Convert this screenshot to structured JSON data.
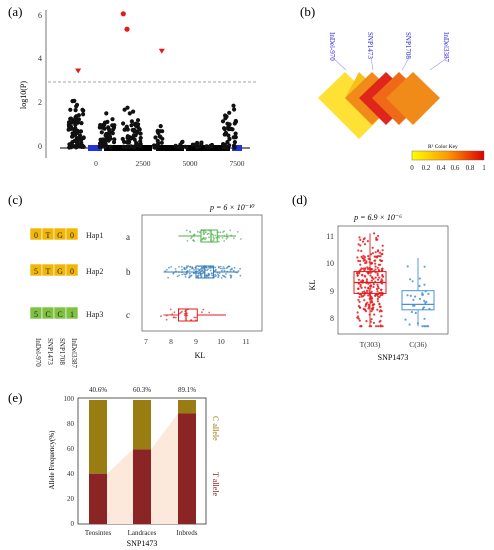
{
  "panels": {
    "a": {
      "label": "(a)",
      "ylabel": "log10(P)",
      "yticks": [
        "0",
        "2",
        "4",
        "6"
      ],
      "xticks": [
        "0",
        "2500",
        "5000",
        "7500"
      ],
      "threshold": 3,
      "red_points": [
        {
          "x": 1450,
          "y": 6.1
        },
        {
          "x": 1650,
          "y": 5.4
        },
        {
          "x": 3500,
          "y": 4.4
        },
        {
          "x": -950,
          "y": 3.5
        }
      ]
    },
    "b": {
      "label": "(b)",
      "snps": [
        "InDel-970",
        "SNP1473",
        "SNP1708",
        "InDel3387"
      ],
      "legend_title": "R² Color Key",
      "legend_ticks": [
        "0",
        "0.2",
        "0.4",
        "0.6",
        "0.8",
        "1"
      ]
    },
    "c": {
      "label": "(c)",
      "p_value": "p = 6 × 10⁻¹⁰",
      "haplotypes": [
        {
          "name": "Hap1",
          "letter": "a",
          "alleles": [
            "0",
            "T",
            "G",
            "0"
          ],
          "color": "#f2b705"
        },
        {
          "name": "Hap2",
          "letter": "b",
          "alleles": [
            "5",
            "T",
            "G",
            "0"
          ],
          "color": "#f2b705"
        },
        {
          "name": "Hap3",
          "letter": "c",
          "alleles": [
            "5",
            "C",
            "C",
            "1"
          ],
          "color": "#7fc241"
        }
      ],
      "markers": [
        "InDel-970",
        "SNP1473",
        "SNP1708",
        "InDel3387"
      ],
      "xlabel": "KL",
      "xticks": [
        "7",
        "8",
        "9",
        "10",
        "11"
      ]
    },
    "d": {
      "label": "(d)",
      "p_value": "p = 6.9 × 10⁻⁶",
      "ylabel": "KL",
      "xlabel": "SNP1473",
      "yticks": [
        "8",
        "9",
        "10",
        "11"
      ],
      "groups": [
        "T(303)",
        "C(36)"
      ]
    },
    "e": {
      "label": "(e)",
      "ylabel": "Allele Frequency(%)",
      "xlabel": "SNP1473",
      "yticks": [
        "0",
        "20",
        "40",
        "60",
        "80",
        "100"
      ],
      "top_labels": [
        "40.6%",
        "60.3%",
        "89.1%"
      ],
      "right_top": "C allele",
      "right_bottom": "T allele"
    }
  },
  "chart_data": [
    {
      "type": "scatter",
      "panel": "a",
      "ylabel": "log10(P)",
      "xlim": [
        -1500,
        8000
      ],
      "ylim": [
        0,
        6.5
      ],
      "grid": false,
      "highlight": [
        {
          "x": 1450,
          "y": 6.1
        },
        {
          "x": 1650,
          "y": 5.4
        },
        {
          "x": 3500,
          "y": 4.4
        },
        {
          "x": -950,
          "y": 3.5
        }
      ]
    },
    {
      "type": "box",
      "panel": "c",
      "orientation": "horizontal",
      "xlabel": "KL",
      "xlim": [
        6.8,
        11.3
      ],
      "series": [
        {
          "name": "Hap1",
          "q1": 9.2,
          "median": 9.6,
          "q3": 9.85,
          "low": 8.3,
          "high": 10.6,
          "color": "#4daf4a"
        },
        {
          "name": "Hap2",
          "q1": 9.0,
          "median": 9.35,
          "q3": 9.7,
          "low": 7.7,
          "high": 10.7,
          "color": "#377eb8"
        },
        {
          "name": "Hap3",
          "q1": 8.3,
          "median": 8.6,
          "q3": 9.05,
          "low": 7.7,
          "high": 10.2,
          "color": "#e41a1c"
        }
      ]
    },
    {
      "type": "box",
      "panel": "d",
      "ylabel": "KL",
      "xlabel": "SNP1473",
      "categories": [
        "T(303)",
        "C(36)"
      ],
      "ylim": [
        7.4,
        11.3
      ],
      "series": [
        {
          "name": "T(303)",
          "q1": 8.9,
          "median": 9.3,
          "q3": 9.7,
          "low": 7.7,
          "high": 11.1,
          "color": "#e41a1c"
        },
        {
          "name": "C(36)",
          "q1": 8.3,
          "median": 8.5,
          "q3": 9.0,
          "low": 7.7,
          "high": 10.2,
          "color": "#4a90d9"
        }
      ]
    },
    {
      "type": "bar",
      "panel": "e",
      "stacked": true,
      "ylabel": "Allele Frequency(%)",
      "xlabel": "SNP1473",
      "categories": [
        "Teosintes",
        "Landraces",
        "Inbreds"
      ],
      "ylim": [
        0,
        100
      ],
      "series": [
        {
          "name": "T allele",
          "values": [
            40.6,
            60.3,
            89.1
          ],
          "color": "#8b2525"
        },
        {
          "name": "C allele",
          "values": [
            59.4,
            39.7,
            10.9
          ],
          "color": "#9a7d12"
        }
      ]
    }
  ],
  "colors": {
    "red": "#e41a1c",
    "green": "#4daf4a",
    "blue": "#377eb8",
    "dark_red": "#8b2525",
    "olive": "#9a7d12",
    "peach": "#fce9dc"
  }
}
